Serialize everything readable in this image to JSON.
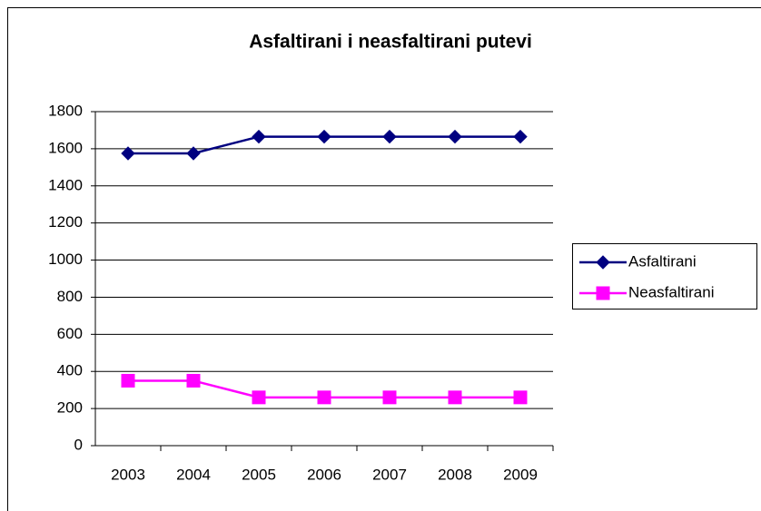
{
  "chart_data": {
    "type": "line",
    "title": "Asfaltirani i neasfaltirani putevi",
    "categories": [
      "2003",
      "2004",
      "2005",
      "2006",
      "2007",
      "2008",
      "2009"
    ],
    "series": [
      {
        "name": "Asfaltirani",
        "color": "#000080",
        "marker": "diamond",
        "values": [
          1575,
          1575,
          1665,
          1665,
          1665,
          1665,
          1665
        ]
      },
      {
        "name": "Neasfaltirani",
        "color": "#ff00ff",
        "marker": "square",
        "values": [
          350,
          350,
          260,
          260,
          260,
          260,
          260
        ]
      }
    ],
    "ylim": [
      0,
      1800
    ],
    "yticks": [
      0,
      200,
      400,
      600,
      800,
      1000,
      1200,
      1400,
      1600,
      1800
    ],
    "grid": true,
    "legend": "right"
  }
}
